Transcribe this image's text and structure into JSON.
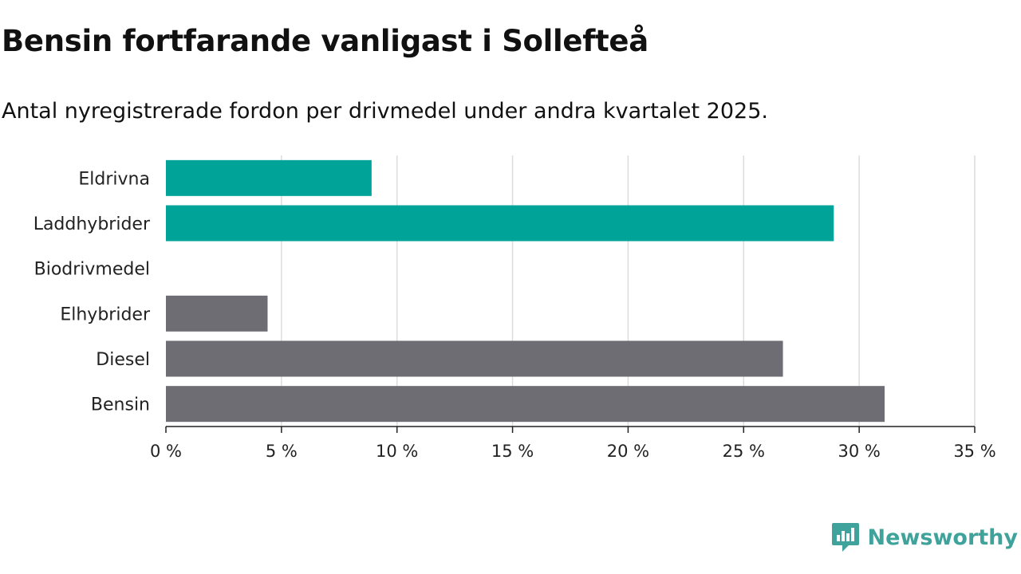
{
  "header": {
    "title": "Bensin fortfarande vanligast i Sollefteå",
    "subtitle": "Antal nyregistrerade fordon per drivmedel under andra kvartalet 2025."
  },
  "chart_data": {
    "type": "bar",
    "orientation": "horizontal",
    "categories": [
      "Eldrivna",
      "Laddhybrider",
      "Biodrivmedel",
      "Elhybrider",
      "Diesel",
      "Bensin"
    ],
    "values": [
      8.9,
      28.9,
      0,
      4.4,
      26.7,
      31.1
    ],
    "colors": [
      "#00a398",
      "#00a398",
      "#00a398",
      "#6e6d73",
      "#6e6d73",
      "#6e6d73"
    ],
    "xticks": [
      "0 %",
      "5 %",
      "10 %",
      "15 %",
      "20 %",
      "25 %",
      "30 %",
      "35 %"
    ],
    "xlim": [
      0,
      35
    ],
    "grid": true
  },
  "brand": {
    "name": "Newsworthy",
    "color": "#3fa39b",
    "icon": "newsworthy-logo-icon"
  }
}
